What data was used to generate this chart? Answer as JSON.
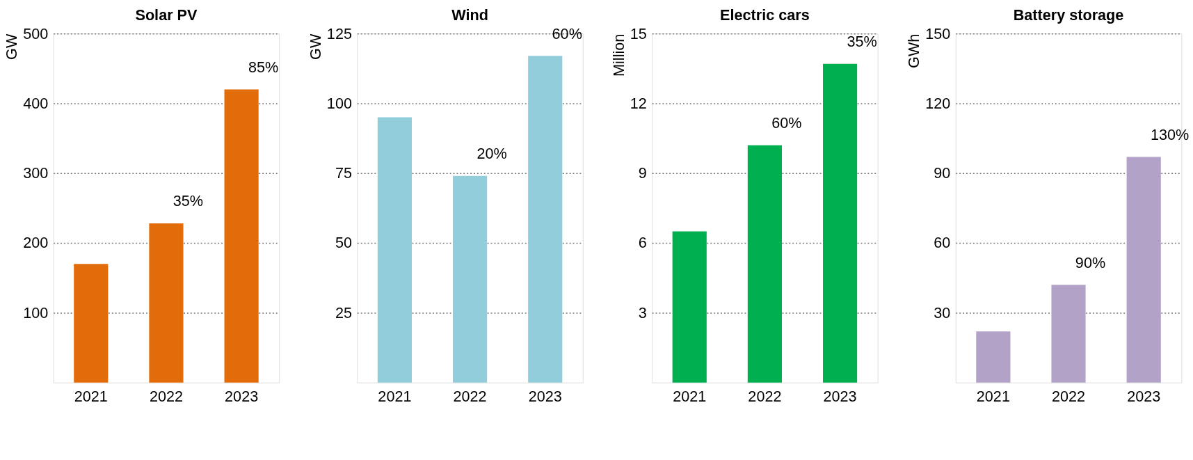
{
  "chart_data": [
    {
      "type": "bar",
      "title": "Solar PV",
      "ylabel": "GW",
      "categories": [
        "2021",
        "2022",
        "2023"
      ],
      "values": [
        170,
        228,
        420
      ],
      "color": "#e36c0a",
      "ylim": [
        0,
        500
      ],
      "yticks": [
        100,
        200,
        300,
        400,
        500
      ],
      "grid": "y",
      "annotations": [
        "35%",
        "85%"
      ]
    },
    {
      "type": "bar",
      "title": "Wind",
      "ylabel": "GW",
      "categories": [
        "2021",
        "2022",
        "2023"
      ],
      "values": [
        95,
        74,
        117
      ],
      "color": "#92cddc",
      "ylim": [
        0,
        125
      ],
      "yticks": [
        25,
        50,
        75,
        100,
        125
      ],
      "grid": "y",
      "annotations": [
        "20%",
        "60%"
      ]
    },
    {
      "type": "bar",
      "title": "Electric cars",
      "ylabel": "Million",
      "categories": [
        "2021",
        "2022",
        "2023"
      ],
      "values": [
        6.5,
        10.2,
        13.7
      ],
      "color": "#00b050",
      "ylim": [
        0,
        15
      ],
      "yticks": [
        3,
        6,
        9,
        12,
        15
      ],
      "grid": "y",
      "annotations": [
        "60%",
        "35%"
      ]
    },
    {
      "type": "bar",
      "title": "Battery storage",
      "ylabel": "GWh",
      "categories": [
        "2021",
        "2022",
        "2023"
      ],
      "values": [
        22,
        42,
        97
      ],
      "color": "#b2a2c7",
      "ylim": [
        0,
        150
      ],
      "yticks": [
        30,
        60,
        90,
        120,
        150
      ],
      "grid": "y",
      "annotations": [
        "90%",
        "130%"
      ]
    }
  ]
}
